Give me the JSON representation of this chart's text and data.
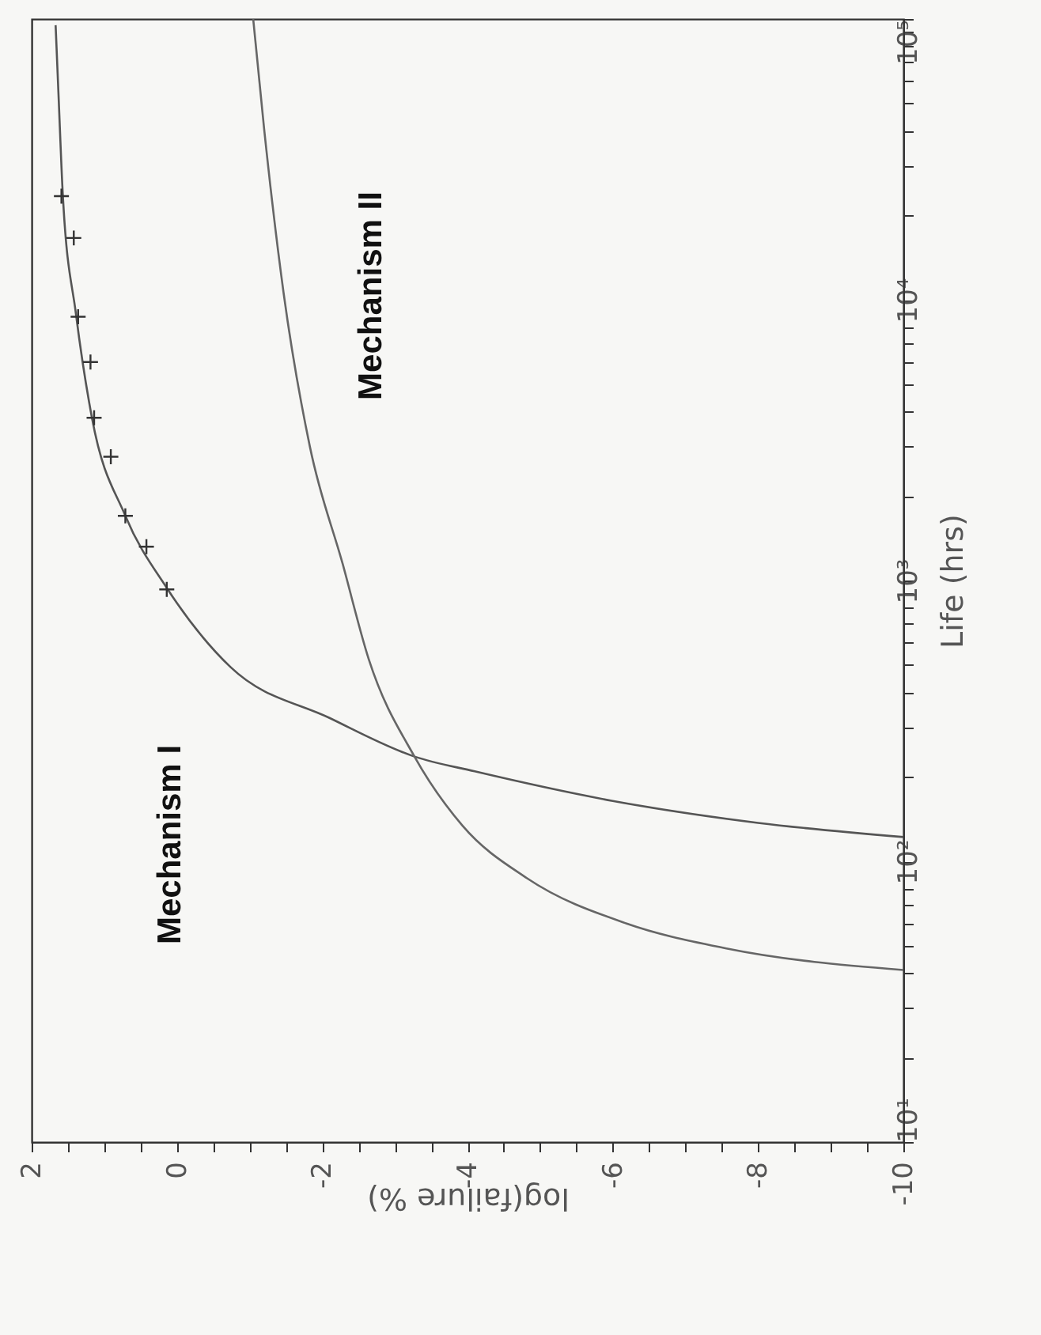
{
  "chart_data": {
    "type": "line",
    "xlabel": "log(failure %)",
    "ylabel": "Life (hrs)",
    "xlim": [
      2,
      -10
    ],
    "ylim": [
      10,
      100000
    ],
    "log": "y",
    "grid": false,
    "line_style": "solid",
    "xticks": [
      2,
      {
        "value": 1.5,
        "label": null
      },
      {
        "value": 1,
        "label": null
      },
      {
        "value": 0.5,
        "label": null
      },
      0,
      {
        "value": -0.5,
        "label": null
      },
      {
        "value": -1,
        "label": null
      },
      {
        "value": -1.5,
        "label": null
      },
      -2,
      {
        "value": -2.5,
        "label": null
      },
      {
        "value": -3,
        "label": null
      },
      {
        "value": -3.5,
        "label": null
      },
      -4,
      {
        "value": -4.5,
        "label": null
      },
      {
        "value": -5,
        "label": null
      },
      {
        "value": -5.5,
        "label": null
      },
      -6,
      {
        "value": -6.5,
        "label": null
      },
      {
        "value": -7,
        "label": null
      },
      {
        "value": -7.5,
        "label": null
      },
      -8,
      {
        "value": -8.5,
        "label": null
      },
      {
        "value": -9,
        "label": null
      },
      {
        "value": -9.5,
        "label": null
      },
      -10
    ],
    "yticks": [
      {
        "value": 10,
        "label": "10¹"
      },
      {
        "value": 20,
        "label": null
      },
      {
        "value": 30,
        "label": null
      },
      {
        "value": 40,
        "label": null
      },
      {
        "value": 50,
        "label": null
      },
      {
        "value": 60,
        "label": null
      },
      {
        "value": 70,
        "label": null
      },
      {
        "value": 80,
        "label": null
      },
      {
        "value": 90,
        "label": null
      },
      {
        "value": 100,
        "label": "10²"
      },
      {
        "value": 200,
        "label": null
      },
      {
        "value": 300,
        "label": null
      },
      {
        "value": 400,
        "label": null
      },
      {
        "value": 500,
        "label": null
      },
      {
        "value": 600,
        "label": null
      },
      {
        "value": 700,
        "label": null
      },
      {
        "value": 800,
        "label": null
      },
      {
        "value": 900,
        "label": null
      },
      {
        "value": 1000,
        "label": "10³"
      },
      {
        "value": 2000,
        "label": null
      },
      {
        "value": 3000,
        "label": null
      },
      {
        "value": 4000,
        "label": null
      },
      {
        "value": 5000,
        "label": null
      },
      {
        "value": 6000,
        "label": null
      },
      {
        "value": 7000,
        "label": null
      },
      {
        "value": 8000,
        "label": null
      },
      {
        "value": 9000,
        "label": null
      },
      {
        "value": 10000,
        "label": "10⁴"
      },
      {
        "value": 20000,
        "label": null
      },
      {
        "value": 30000,
        "label": null
      },
      {
        "value": 40000,
        "label": null
      },
      {
        "value": 50000,
        "label": null
      },
      {
        "value": 60000,
        "label": null
      },
      {
        "value": 70000,
        "label": null
      },
      {
        "value": 80000,
        "label": null
      },
      {
        "value": 90000,
        "label": null
      },
      {
        "value": 100000,
        "label": "10⁵"
      }
    ],
    "series": [
      {
        "type": "line",
        "color": "#555555",
        "x": [
          -10,
          -8.0,
          -6.0,
          -4.1,
          -3.27,
          -2.1,
          -0.74,
          0.13,
          0.71,
          1.17,
          1.39,
          1.57,
          1.63,
          1.67
        ],
        "values": [
          122,
          137,
          164,
          209,
          236,
          324,
          491,
          933,
          1700,
          3800,
          8900,
          23400,
          53700,
          95000
        ]
      },
      {
        "type": "line",
        "color": "#666666",
        "x": [
          -1.05,
          -1.2,
          -1.47,
          -1.83,
          -2.28,
          -2.64,
          -3.27,
          -3.93,
          -4.82,
          -6.19,
          -7.55,
          -10
        ],
        "values": [
          100000,
          40700,
          10500,
          3000,
          1150,
          525,
          236,
          134,
          87,
          60,
          49,
          41
        ]
      },
      {
        "type": "scatter",
        "marker": "cross",
        "color": "#333333",
        "x": [
          1.59,
          1.42,
          1.36,
          1.19,
          1.14,
          0.91,
          0.71,
          0.42,
          0.14
        ],
        "values": [
          23400,
          16600,
          8700,
          6000,
          3800,
          2760,
          1700,
          1320,
          930
        ]
      }
    ],
    "annotations": [
      "Mechanism I",
      "Mechanism II"
    ]
  }
}
